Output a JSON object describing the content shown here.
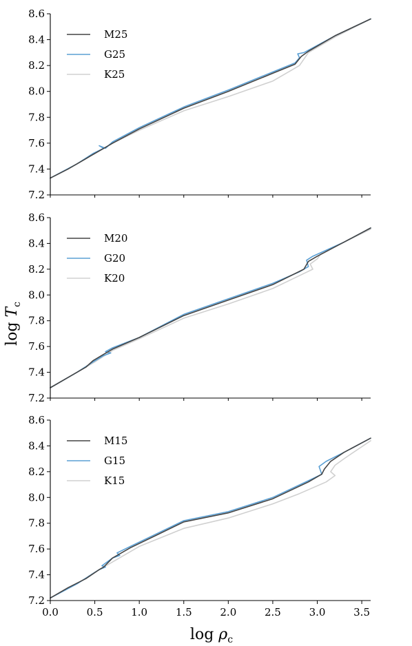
{
  "xlabel": "log ρc",
  "ylabel": "log Tc",
  "chart_data": [
    {
      "type": "line",
      "xlim": [
        0.0,
        3.6
      ],
      "ylim": [
        7.2,
        8.6
      ],
      "yticks": [
        "7.2",
        "7.4",
        "7.6",
        "7.8",
        "8.0",
        "8.2",
        "8.4",
        "8.6"
      ],
      "xticks": [],
      "legend_position": "top-left",
      "series": [
        {
          "name": "K25",
          "color": "#d0d0d0",
          "points": [
            [
              0.0,
              7.33
            ],
            [
              0.3,
              7.44
            ],
            [
              0.5,
              7.52
            ],
            [
              0.7,
              7.6
            ],
            [
              1.0,
              7.7
            ],
            [
              1.5,
              7.85
            ],
            [
              2.0,
              7.96
            ],
            [
              2.5,
              8.08
            ],
            [
              2.7,
              8.16
            ],
            [
              2.8,
              8.2
            ],
            [
              2.9,
              8.3
            ],
            [
              3.2,
              8.42
            ],
            [
              3.6,
              8.56
            ]
          ]
        },
        {
          "name": "G25",
          "color": "#5a9fd4",
          "points": [
            [
              0.0,
              7.33
            ],
            [
              0.3,
              7.44
            ],
            [
              0.48,
              7.52
            ],
            [
              0.6,
              7.56
            ],
            [
              0.55,
              7.58
            ],
            [
              0.62,
              7.56
            ],
            [
              0.7,
              7.61
            ],
            [
              1.0,
              7.72
            ],
            [
              1.5,
              7.88
            ],
            [
              2.0,
              8.01
            ],
            [
              2.5,
              8.15
            ],
            [
              2.75,
              8.22
            ],
            [
              2.8,
              8.26
            ],
            [
              2.78,
              8.29
            ],
            [
              2.85,
              8.3
            ],
            [
              3.2,
              8.43
            ],
            [
              3.6,
              8.56
            ]
          ]
        },
        {
          "name": "M25",
          "color": "#444444",
          "points": [
            [
              0.0,
              7.33
            ],
            [
              0.2,
              7.4
            ],
            [
              0.4,
              7.48
            ],
            [
              0.45,
              7.5
            ],
            [
              0.6,
              7.56
            ],
            [
              0.7,
              7.6
            ],
            [
              1.0,
              7.71
            ],
            [
              1.5,
              7.87
            ],
            [
              2.0,
              8.0
            ],
            [
              2.5,
              8.14
            ],
            [
              2.75,
              8.21
            ],
            [
              2.82,
              8.27
            ],
            [
              2.9,
              8.31
            ],
            [
              3.2,
              8.43
            ],
            [
              3.6,
              8.56
            ]
          ]
        }
      ]
    },
    {
      "type": "line",
      "xlim": [
        0.0,
        3.6
      ],
      "ylim": [
        7.2,
        8.6
      ],
      "yticks": [
        "7.2",
        "7.4",
        "7.6",
        "7.8",
        "8.0",
        "8.2",
        "8.4",
        "8.6"
      ],
      "xticks": [],
      "legend_position": "top-left",
      "series": [
        {
          "name": "K20",
          "color": "#d0d0d0",
          "points": [
            [
              0.0,
              7.28
            ],
            [
              0.3,
              7.4
            ],
            [
              0.5,
              7.48
            ],
            [
              0.7,
              7.57
            ],
            [
              1.0,
              7.66
            ],
            [
              1.5,
              7.82
            ],
            [
              2.0,
              7.93
            ],
            [
              2.5,
              8.05
            ],
            [
              2.8,
              8.15
            ],
            [
              2.95,
              8.2
            ],
            [
              2.92,
              8.24
            ],
            [
              3.0,
              8.28
            ],
            [
              3.05,
              8.33
            ],
            [
              3.3,
              8.41
            ],
            [
              3.6,
              8.51
            ]
          ]
        },
        {
          "name": "G20",
          "color": "#5a9fd4",
          "points": [
            [
              0.0,
              7.28
            ],
            [
              0.3,
              7.4
            ],
            [
              0.48,
              7.48
            ],
            [
              0.6,
              7.53
            ],
            [
              0.68,
              7.55
            ],
            [
              0.62,
              7.56
            ],
            [
              0.7,
              7.59
            ],
            [
              1.0,
              7.67
            ],
            [
              1.5,
              7.85
            ],
            [
              2.0,
              7.97
            ],
            [
              2.5,
              8.09
            ],
            [
              2.8,
              8.18
            ],
            [
              2.9,
              8.22
            ],
            [
              2.88,
              8.27
            ],
            [
              2.95,
              8.3
            ],
            [
              3.3,
              8.41
            ],
            [
              3.6,
              8.52
            ]
          ]
        },
        {
          "name": "M20",
          "color": "#444444",
          "points": [
            [
              0.0,
              7.28
            ],
            [
              0.2,
              7.36
            ],
            [
              0.4,
              7.44
            ],
            [
              0.48,
              7.49
            ],
            [
              0.6,
              7.54
            ],
            [
              0.7,
              7.58
            ],
            [
              1.0,
              7.67
            ],
            [
              1.5,
              7.84
            ],
            [
              2.0,
              7.96
            ],
            [
              2.5,
              8.08
            ],
            [
              2.85,
              8.2
            ],
            [
              2.9,
              8.26
            ],
            [
              3.0,
              8.3
            ],
            [
              3.3,
              8.41
            ],
            [
              3.6,
              8.52
            ]
          ]
        }
      ]
    },
    {
      "type": "line",
      "xlim": [
        0.0,
        3.6
      ],
      "ylim": [
        7.2,
        8.6
      ],
      "yticks": [
        "7.2",
        "7.4",
        "7.6",
        "7.8",
        "8.0",
        "8.2",
        "8.4",
        "8.6"
      ],
      "xticks": [
        "0.0",
        "0.5",
        "1.0",
        "1.5",
        "2.0",
        "2.5",
        "3.0",
        "3.5"
      ],
      "legend_position": "top-left",
      "series": [
        {
          "name": "K15",
          "color": "#d0d0d0",
          "points": [
            [
              0.0,
              7.22
            ],
            [
              0.3,
              7.33
            ],
            [
              0.5,
              7.42
            ],
            [
              0.7,
              7.5
            ],
            [
              1.0,
              7.62
            ],
            [
              1.5,
              7.76
            ],
            [
              2.0,
              7.84
            ],
            [
              2.5,
              7.95
            ],
            [
              2.8,
              8.03
            ],
            [
              3.1,
              8.12
            ],
            [
              3.2,
              8.17
            ],
            [
              3.15,
              8.2
            ],
            [
              3.2,
              8.25
            ],
            [
              3.3,
              8.3
            ],
            [
              3.6,
              8.44
            ]
          ]
        },
        {
          "name": "G15",
          "color": "#5a9fd4",
          "points": [
            [
              0.0,
              7.22
            ],
            [
              0.3,
              7.33
            ],
            [
              0.55,
              7.44
            ],
            [
              0.62,
              7.46
            ],
            [
              0.58,
              7.47
            ],
            [
              0.7,
              7.53
            ],
            [
              0.78,
              7.55
            ],
            [
              0.75,
              7.57
            ],
            [
              0.9,
              7.62
            ],
            [
              1.2,
              7.72
            ],
            [
              1.5,
              7.82
            ],
            [
              2.0,
              7.89
            ],
            [
              2.5,
              8.0
            ],
            [
              2.9,
              8.13
            ],
            [
              3.05,
              8.18
            ],
            [
              3.02,
              8.24
            ],
            [
              3.1,
              8.28
            ],
            [
              3.3,
              8.35
            ],
            [
              3.6,
              8.46
            ]
          ]
        },
        {
          "name": "M15",
          "color": "#444444",
          "points": [
            [
              0.0,
              7.22
            ],
            [
              0.2,
              7.3
            ],
            [
              0.4,
              7.37
            ],
            [
              0.55,
              7.44
            ],
            [
              0.6,
              7.46
            ],
            [
              0.7,
              7.53
            ],
            [
              0.9,
              7.61
            ],
            [
              1.2,
              7.71
            ],
            [
              1.5,
              7.81
            ],
            [
              2.0,
              7.88
            ],
            [
              2.5,
              7.99
            ],
            [
              2.9,
              8.12
            ],
            [
              3.05,
              8.18
            ],
            [
              3.08,
              8.22
            ],
            [
              3.15,
              8.28
            ],
            [
              3.3,
              8.35
            ],
            [
              3.6,
              8.46
            ]
          ]
        }
      ]
    }
  ]
}
